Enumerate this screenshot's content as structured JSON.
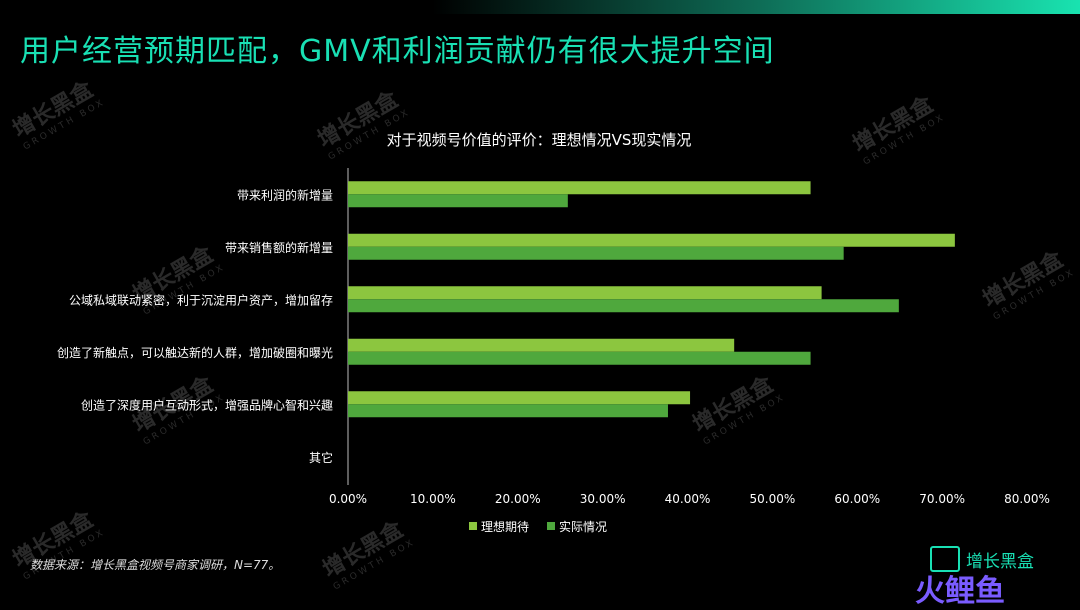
{
  "page_title": "用户经营预期匹配，GMV和利润贡献仍有很大提升空间",
  "footnote": "数据来源：增长黑盒视频号商家调研，N=77。",
  "watermark": {
    "cn": "增长黑盒",
    "en": "GROWTH BOX"
  },
  "logo": {
    "brand": "增长黑盒",
    "corner_mark": "火鲤鱼"
  },
  "colors": {
    "ideal": "#8cc63f",
    "actual": "#4fa83d",
    "title": "#19e0b4"
  },
  "chart_data": {
    "type": "bar",
    "orientation": "horizontal",
    "title": "对于视频号价值的评价：理想情况VS现实情况",
    "categories": [
      "带来利润的新增量",
      "带来销售额的新增量",
      "公域私域联动紧密，利于沉淀用户资产，增加留存",
      "创造了新触点，可以触达新的人群，增加破圈和曝光",
      "创造了深度用户互动形式，增强品牌心智和兴趣",
      "其它"
    ],
    "series": [
      {
        "name": "理想期待",
        "values": [
          54.5,
          71.5,
          55.8,
          45.5,
          40.3,
          0
        ]
      },
      {
        "name": "实际情况",
        "values": [
          25.9,
          58.4,
          64.9,
          54.5,
          37.7,
          0
        ]
      }
    ],
    "xlim": [
      0,
      80
    ],
    "xticks": [
      "0.00%",
      "10.00%",
      "20.00%",
      "30.00%",
      "40.00%",
      "50.00%",
      "60.00%",
      "70.00%",
      "80.00%"
    ],
    "legend_position": "bottom",
    "grid": false
  }
}
